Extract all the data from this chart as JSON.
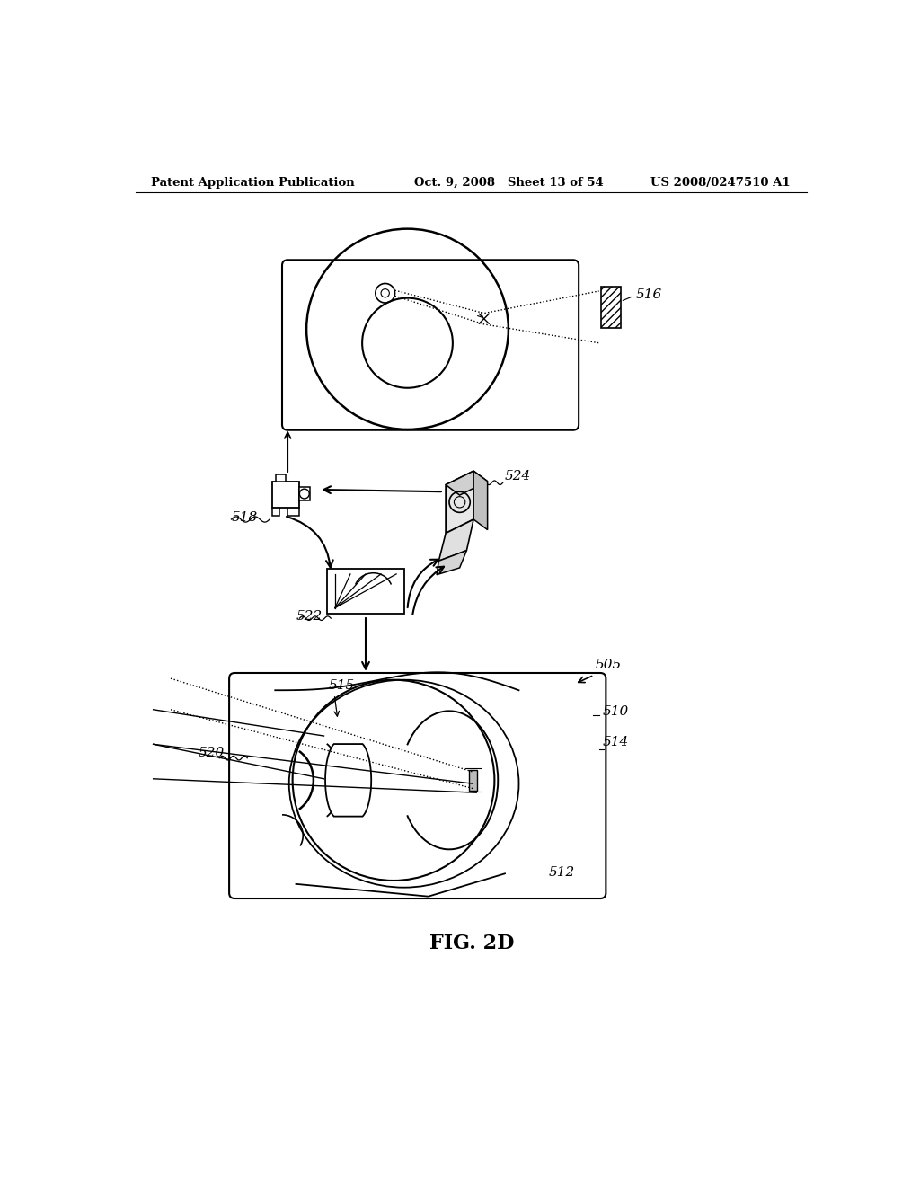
{
  "background_color": "#ffffff",
  "header_left": "Patent Application Publication",
  "header_center": "Oct. 9, 2008   Sheet 13 of 54",
  "header_right": "US 2008/0247510 A1",
  "fig_label": "FIG. 2D",
  "label_516": "516",
  "label_518": "518",
  "label_522": "522",
  "label_524": "524",
  "label_505": "505",
  "label_510": "510",
  "label_512": "512",
  "label_514": "514",
  "label_515": "515",
  "label_520": "520"
}
